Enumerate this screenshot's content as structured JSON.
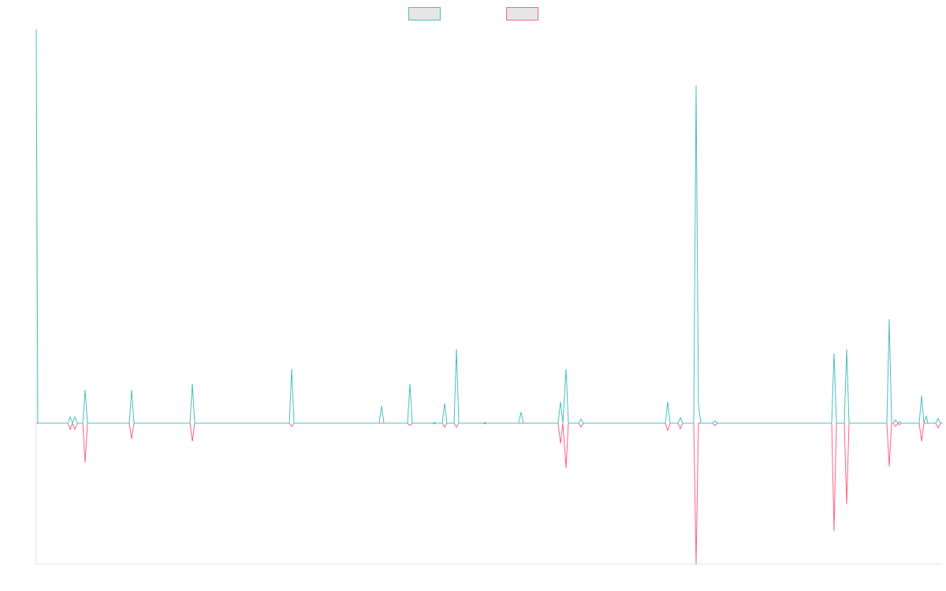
{
  "chart_data": {
    "type": "line",
    "x": [
      0,
      2,
      40,
      43,
      46,
      49,
      52,
      59,
      62,
      65,
      118,
      121,
      124,
      195,
      198,
      201,
      321,
      324,
      327,
      435,
      438,
      441,
      471,
      474,
      477,
      503,
      505,
      507,
      515,
      518,
      521,
      530,
      533,
      536,
      567,
      569,
      571,
      612,
      615,
      618,
      662,
      665,
      668,
      672,
      675,
      688,
      691,
      694,
      798,
      801,
      804,
      814,
      817,
      820,
      834,
      837,
      840,
      843,
      858,
      861,
      864,
      1009,
      1012,
      1015,
      1025,
      1028,
      1031,
      1079,
      1082,
      1085,
      1087,
      1090,
      1093,
      1095,
      1097,
      1120,
      1123,
      1126,
      1129,
      1131,
      1141,
      1144,
      1147,
      1150
    ],
    "xlim": [
      0,
      1150
    ],
    "ylim": [
      -179,
      500
    ],
    "series": [
      {
        "color": "#ff6384",
        "values": [
          0,
          0,
          0,
          -8,
          0,
          -8,
          0,
          0,
          -50,
          0,
          0,
          -20,
          0,
          0,
          -23,
          0,
          0,
          -4,
          0,
          0,
          0,
          0,
          0,
          -3,
          0,
          0,
          -1,
          0,
          0,
          -5,
          0,
          0,
          -5,
          0,
          0,
          -1,
          0,
          0,
          0,
          0,
          0,
          -26,
          0,
          -57,
          0,
          0,
          -5,
          0,
          0,
          -9,
          0,
          0,
          -7,
          0,
          0,
          -179,
          0,
          0,
          0,
          -3,
          0,
          0,
          -137,
          0,
          0,
          -103,
          0,
          0,
          -55,
          0,
          0,
          -4,
          0,
          -2,
          0,
          0,
          -23,
          0,
          0,
          0,
          0,
          -6,
          0,
          0
        ]
      },
      {
        "color": "#4bc0c0",
        "values": [
          500,
          0,
          0,
          8,
          0,
          8,
          0,
          0,
          42,
          0,
          0,
          42,
          0,
          0,
          50,
          0,
          0,
          69,
          0,
          0,
          22,
          0,
          0,
          50,
          0,
          0,
          1,
          0,
          0,
          25,
          0,
          0,
          94,
          0,
          0,
          1,
          0,
          0,
          14,
          0,
          0,
          27,
          0,
          69,
          0,
          0,
          5,
          0,
          0,
          27,
          0,
          0,
          7,
          0,
          0,
          429,
          23,
          0,
          0,
          3,
          0,
          0,
          89,
          0,
          0,
          94,
          0,
          0,
          132,
          0,
          0,
          4,
          0,
          2,
          0,
          0,
          35,
          0,
          9,
          0,
          0,
          6,
          0,
          0
        ]
      }
    ]
  }
}
